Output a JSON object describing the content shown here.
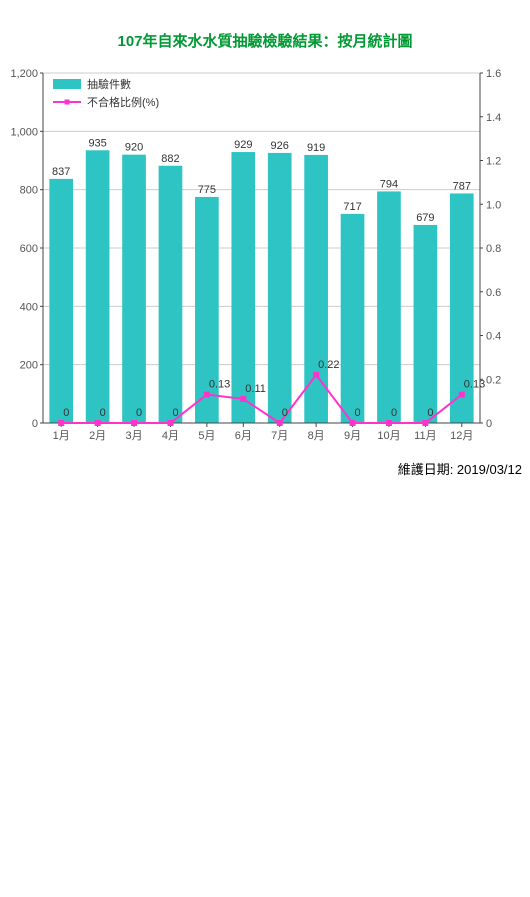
{
  "title": "107年自來水水質抽驗檢驗結果：按月統計圖",
  "maintenance_label": "維護日期: 2019/03/12",
  "chart": {
    "categories": [
      "1月",
      "2月",
      "3月",
      "4月",
      "5月",
      "6月",
      "7月",
      "8月",
      "9月",
      "10月",
      "11月",
      "12月"
    ],
    "bar": {
      "name": "抽驗件數",
      "values": [
        837,
        935,
        920,
        882,
        775,
        929,
        926,
        919,
        717,
        794,
        679,
        787
      ],
      "color": "#2ec4c4"
    },
    "line": {
      "name": "不合格比例(%)",
      "values": [
        0,
        0,
        0,
        0,
        0.13,
        0.11,
        0,
        0.22,
        0,
        0,
        0,
        0.13
      ],
      "color": "#ff33cc"
    },
    "y_left": {
      "min": 0,
      "max": 1200,
      "step": 200
    },
    "y_right": {
      "min": 0,
      "max": 1.6,
      "step": 0.2
    },
    "grid_color": "#cccccc",
    "axis_color": "#444444",
    "label_font_size": 11,
    "value_font_size": 11,
    "title_color": "#009933",
    "plot_bg": "#ffffff",
    "bar_width_ratio": 0.65,
    "marker_size": 5
  }
}
